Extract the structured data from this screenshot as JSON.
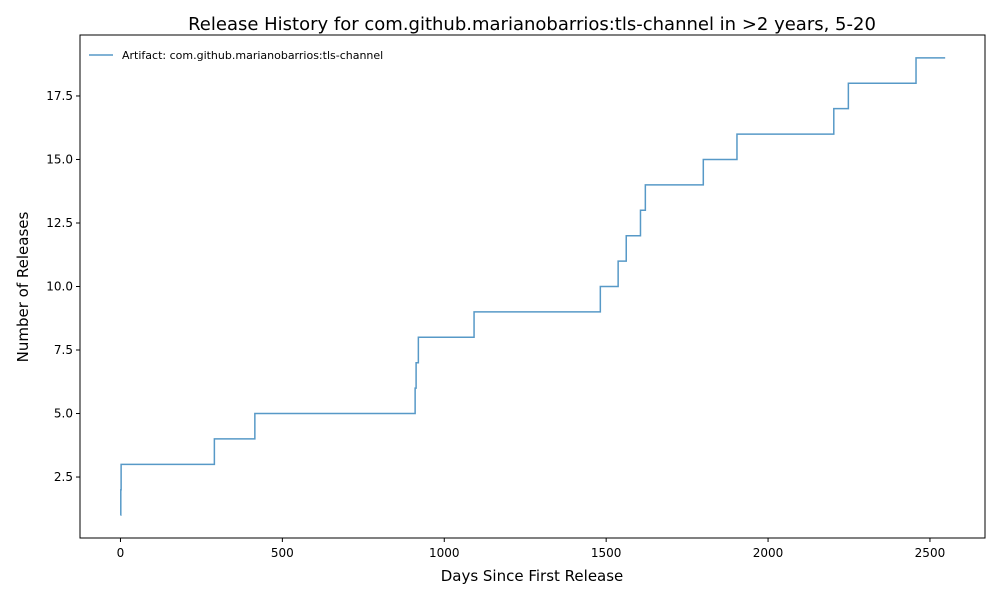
{
  "chart_data": {
    "type": "line",
    "drawstyle": "steps-post",
    "title": "Release History for com.github.marianobarrios:tls-channel in >2 years, 5-20",
    "xlabel": "Days Since First Release",
    "ylabel": "Number of Releases",
    "xlim": [
      -125,
      2670
    ],
    "ylim": [
      0.1,
      19.9
    ],
    "xticks": [
      0,
      500,
      1000,
      1500,
      2000,
      2500
    ],
    "xtick_labels": [
      "0",
      "500",
      "1000",
      "1500",
      "2000",
      "2500"
    ],
    "yticks": [
      2.5,
      5.0,
      7.5,
      10.0,
      12.5,
      15.0,
      17.5
    ],
    "ytick_labels": [
      "2.5",
      "5.0",
      "7.5",
      "10.0",
      "12.5",
      "15.0",
      "17.5"
    ],
    "grid": false,
    "legend_position": "top-left",
    "series": [
      {
        "name": "Artifact: com.github.marianobarrios:tls-channel",
        "color": "#1f77b4",
        "x": [
          0,
          1,
          2,
          290,
          415,
          910,
          913,
          920,
          1092,
          1482,
          1537,
          1562,
          1606,
          1621,
          1800,
          1904,
          2203,
          2248,
          2457,
          2547
        ],
        "y": [
          1,
          2,
          3,
          4,
          5,
          6,
          7,
          8,
          9,
          10,
          11,
          12,
          13,
          14,
          15,
          16,
          17,
          18,
          19,
          19
        ]
      }
    ]
  }
}
